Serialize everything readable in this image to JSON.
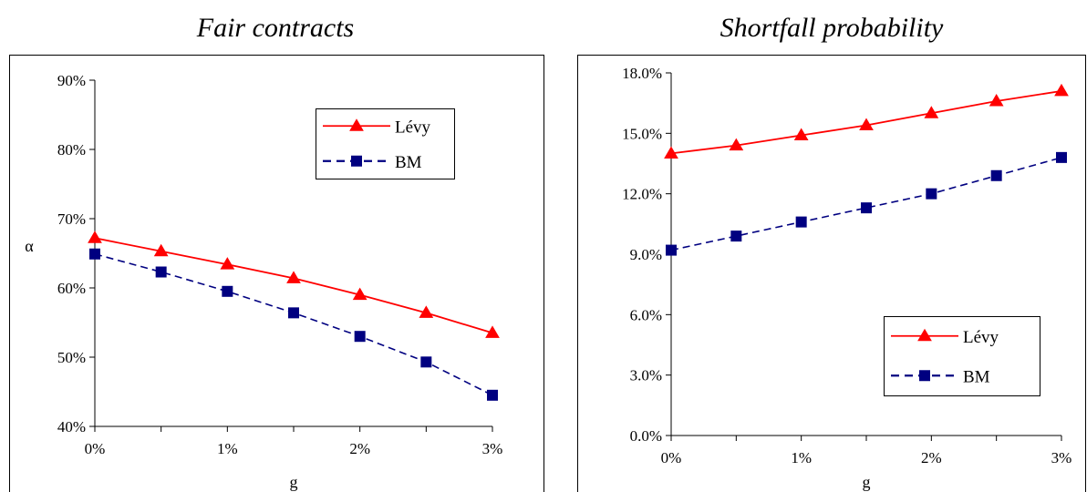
{
  "chart_data": [
    {
      "type": "line",
      "title": "Fair contracts",
      "xlabel": "g",
      "ylabel": "α",
      "x": [
        0,
        0.5,
        1,
        1.5,
        2,
        2.5,
        3
      ],
      "xticks": [
        0,
        1,
        2,
        3
      ],
      "xtick_labels": [
        "0%",
        "1%",
        "2%",
        "3%"
      ],
      "xlim": [
        0,
        3
      ],
      "ylim": [
        40,
        90
      ],
      "yticks": [
        40,
        50,
        60,
        70,
        80,
        90
      ],
      "ytick_labels": [
        "40%",
        "50%",
        "60%",
        "70%",
        "80%",
        "90%"
      ],
      "grid": false,
      "legend_position": "upper-right",
      "series": [
        {
          "name": "Lévy",
          "color": "#ff0000",
          "marker": "triangle",
          "dash": "solid",
          "values": [
            67.2,
            65.3,
            63.4,
            61.4,
            59.0,
            56.4,
            53.5
          ]
        },
        {
          "name": "BM",
          "color": "#000080",
          "marker": "square",
          "dash": "dashed",
          "values": [
            64.9,
            62.3,
            59.5,
            56.4,
            53.0,
            49.3,
            44.5
          ]
        }
      ]
    },
    {
      "type": "line",
      "title": "Shortfall probability",
      "xlabel": "g",
      "ylabel": "",
      "x": [
        0,
        0.5,
        1,
        1.5,
        2,
        2.5,
        3
      ],
      "xticks": [
        0,
        1,
        2,
        3
      ],
      "xtick_labels": [
        "0%",
        "1%",
        "2%",
        "3%"
      ],
      "xlim": [
        0,
        3
      ],
      "ylim": [
        0,
        18
      ],
      "yticks": [
        0,
        3,
        6,
        9,
        12,
        15,
        18
      ],
      "ytick_labels": [
        "0.0%",
        "3.0%",
        "6.0%",
        "9.0%",
        "12.0%",
        "15.0%",
        "18.0%"
      ],
      "grid": false,
      "legend_position": "lower-right",
      "series": [
        {
          "name": "Lévy",
          "color": "#ff0000",
          "marker": "triangle",
          "dash": "solid",
          "values": [
            14.0,
            14.4,
            14.9,
            15.4,
            16.0,
            16.6,
            17.1
          ]
        },
        {
          "name": "BM",
          "color": "#000080",
          "marker": "square",
          "dash": "dashed",
          "values": [
            9.2,
            9.9,
            10.6,
            11.3,
            12.0,
            12.9,
            13.8
          ]
        }
      ]
    }
  ]
}
